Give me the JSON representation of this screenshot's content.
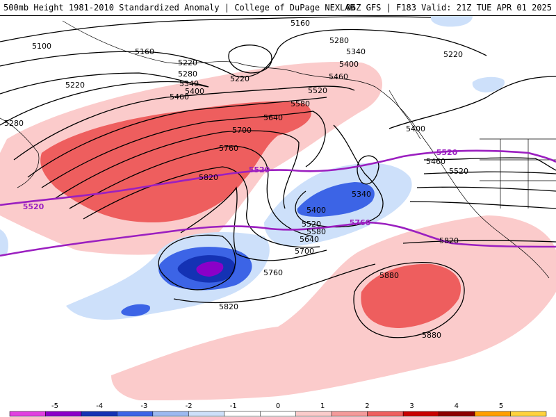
{
  "header": {
    "left": "500mb Height 1981-2010 Standardized Anomaly | College of DuPage NEXLAB",
    "right": "06Z GFS | F183 Valid: 21Z TUE APR 01 2025"
  },
  "map": {
    "black_contour_labels": [
      "5160",
      "5100",
      "5160",
      "5280",
      "5220",
      "5340",
      "5400",
      "5220",
      "5280",
      "5220",
      "5220",
      "5460",
      "5280",
      "5340",
      "5400",
      "5460",
      "5520",
      "5580",
      "5640",
      "5700",
      "5760",
      "5820",
      "5400",
      "5460",
      "5520",
      "5340",
      "5400",
      "5520",
      "5580",
      "5640",
      "5700",
      "5760",
      "5820",
      "5820",
      "5880",
      "5880"
    ],
    "purple_contour_labels": [
      "5520",
      "5520",
      "5520",
      "5760"
    ]
  },
  "colorbar": {
    "ticks": [
      "-5",
      "-4",
      "-3",
      "-2",
      "-1",
      "0",
      "1",
      "2",
      "3",
      "4",
      "5"
    ],
    "colors": [
      "#e040e0",
      "#8a00c8",
      "#1432b4",
      "#3c64e6",
      "#9cb9f0",
      "#cde0fa",
      "#ffffff",
      "#ffffff",
      "#fbcbcb",
      "#f49a9a",
      "#ee5e5e",
      "#c80000",
      "#8c0000",
      "#ff9f00",
      "#ffd23c"
    ]
  }
}
